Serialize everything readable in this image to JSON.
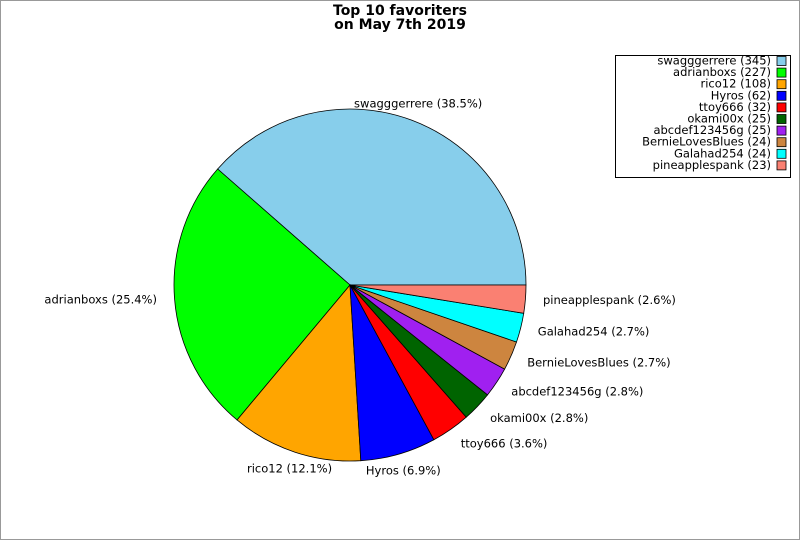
{
  "chart_data": {
    "type": "pie",
    "title": [
      "Top 10 favoriters",
      "on May 7th 2019"
    ],
    "categories": [
      "swagggerrere (345)",
      "adrianboxs (227)",
      "rico12 (108)",
      "Hyros (62)",
      "ttoy666 (32)",
      "okami00x (25)",
      "abcdef123456g (25)",
      "BernieLovesBlues (24)",
      "Galahad254 (24)",
      "pineapplespank (23)"
    ],
    "values": [
      345,
      227,
      108,
      62,
      32,
      25,
      25,
      24,
      24,
      23
    ],
    "slice_labels": [
      "swagggerrere (38.5%)",
      "adrianboxs (25.4%)",
      "rico12 (12.1%)",
      "Hyros (6.9%)",
      "ttoy666 (3.6%)",
      "okami00x (2.8%)",
      "abcdef123456g (2.8%)",
      "BernieLovesBlues (2.7%)",
      "Galahad254 (2.7%)",
      "pineapplespank (2.6%)"
    ],
    "colors": [
      "#87ceeb",
      "#00ff00",
      "#ffa500",
      "#0000ff",
      "#ff0000",
      "#006400",
      "#a020f0",
      "#cd853f",
      "#00ffff",
      "#fa8072"
    ],
    "legend": "upper right"
  }
}
